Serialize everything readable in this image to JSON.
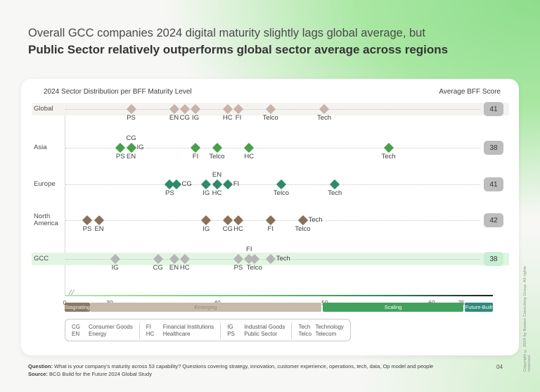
{
  "slide": {
    "title_line1": "Overall GCC companies 2024 digital maturity slightly lags global average, but",
    "title_line2": "Public Sector relatively outperforms global sector average across regions",
    "page_number": "04",
    "copyright": "Copyright © 2024 by Boston Consulting Group. All rights reserved.",
    "footer": {
      "question_label": "Question:",
      "question_text": "What is your company's maturity across 53 capability? Questions covering strategy, innovation, customer experience, operations, tech, data, Op model and people",
      "source_label": "Source:",
      "source_text": "BCG Build for the Future 2024 Global Study"
    }
  },
  "chart_data": {
    "type": "scatter",
    "title": "2024 Sector Distribution per BFF Maturity Level",
    "score_header": "Average BFF Score",
    "xlabel": "BFF Maturity Level score (axis with break after 0 and compression after 60)",
    "x_ticks": [
      0,
      30,
      40,
      50,
      60,
      75
    ],
    "axis_break": true,
    "grid": "dotted row leader lines",
    "maturity_bands": [
      {
        "label": "Stagnating",
        "color": "#8b7a67",
        "text_color": "#f3efe9"
      },
      {
        "label": "Emerging",
        "color": "#c8baaa",
        "text_color": "#938a7d"
      },
      {
        "label": "Scaling",
        "color": "#43a15e",
        "text_color": "#ffffff"
      },
      {
        "label": "Future-Built",
        "color": "#2e8b79",
        "text_color": "#ffffff"
      }
    ],
    "rows": [
      {
        "region": "Global",
        "avg_score": 41,
        "color": "#c9b2a8",
        "badge_bg": "#bdbdbd",
        "badge_fg": "#333333",
        "highlight": "#f4f3f0",
        "points": [
          {
            "sector": "PS",
            "value": 32,
            "label_pos": "below"
          },
          {
            "sector": "EN",
            "value": 36,
            "label_pos": "below"
          },
          {
            "sector": "CG",
            "value": 37,
            "label_pos": "below"
          },
          {
            "sector": "IG",
            "value": 38,
            "label_pos": "below"
          },
          {
            "sector": "HC",
            "value": 41,
            "label_pos": "below"
          },
          {
            "sector": "FI",
            "value": 42,
            "label_pos": "below"
          },
          {
            "sector": "Telco",
            "value": 45,
            "label_pos": "below"
          },
          {
            "sector": "Tech",
            "value": 50,
            "label_pos": "below"
          }
        ]
      },
      {
        "region": "Asia",
        "avg_score": 38,
        "color": "#47a14b",
        "badge_bg": "#bdbdbd",
        "badge_fg": "#333333",
        "highlight": null,
        "points": [
          {
            "sector": "PS",
            "value": 31,
            "label_pos": "below"
          },
          {
            "sector": "EN",
            "value": 32,
            "label_pos": "below"
          },
          {
            "sector": "CG",
            "value": 32,
            "label_pos": "above"
          },
          {
            "sector": "IG",
            "value": 32,
            "label_pos": "right"
          },
          {
            "sector": "FI",
            "value": 38,
            "label_pos": "below"
          },
          {
            "sector": "Telco",
            "value": 40,
            "label_pos": "below"
          },
          {
            "sector": "HC",
            "value": 43,
            "label_pos": "below"
          },
          {
            "sector": "Tech",
            "value": 56,
            "label_pos": "below"
          }
        ]
      },
      {
        "region": "Europe",
        "avg_score": 41,
        "color": "#2f8a6b",
        "badge_bg": "#bdbdbd",
        "badge_fg": "#333333",
        "highlight": null,
        "points": [
          {
            "sector": "PS",
            "value": 35.6,
            "label_pos": "below"
          },
          {
            "sector": "CG",
            "value": 36.2,
            "label_pos": "right"
          },
          {
            "sector": "IG",
            "value": 39,
            "label_pos": "below"
          },
          {
            "sector": "EN",
            "value": 40,
            "label_pos": "above"
          },
          {
            "sector": "HC",
            "value": 40,
            "label_pos": "below"
          },
          {
            "sector": "FI",
            "value": 41,
            "label_pos": "right"
          },
          {
            "sector": "Telco",
            "value": 46,
            "label_pos": "below"
          },
          {
            "sector": "Tech",
            "value": 51,
            "label_pos": "below"
          }
        ]
      },
      {
        "region": "North America",
        "avg_score": 42,
        "color": "#8a7057",
        "badge_bg": "#bdbdbd",
        "badge_fg": "#333333",
        "highlight": null,
        "points": [
          {
            "sector": "PS",
            "value": 15,
            "label_pos": "below"
          },
          {
            "sector": "EN",
            "value": 23,
            "label_pos": "below"
          },
          {
            "sector": "IG",
            "value": 39,
            "label_pos": "below"
          },
          {
            "sector": "CG",
            "value": 41,
            "label_pos": "below"
          },
          {
            "sector": "HC",
            "value": 42,
            "label_pos": "below"
          },
          {
            "sector": "FI",
            "value": 45,
            "label_pos": "below"
          },
          {
            "sector": "Telco",
            "value": 48,
            "label_pos": "below"
          },
          {
            "sector": "Tech",
            "value": 48,
            "label_pos": "right"
          }
        ]
      },
      {
        "region": "GCC",
        "avg_score": 38,
        "color": "#b5b5b5",
        "badge_bg": "#c8efd3",
        "badge_fg": "#333333",
        "highlight": "#e2f5e3",
        "points": [
          {
            "sector": "IG",
            "value": 30.5,
            "label_pos": "below"
          },
          {
            "sector": "CG",
            "value": 34.5,
            "label_pos": "below"
          },
          {
            "sector": "EN",
            "value": 36,
            "label_pos": "below"
          },
          {
            "sector": "HC",
            "value": 37,
            "label_pos": "below"
          },
          {
            "sector": "PS",
            "value": 42,
            "label_pos": "below"
          },
          {
            "sector": "FI",
            "value": 43,
            "label_pos": "above"
          },
          {
            "sector": "Telco",
            "value": 43.5,
            "label_pos": "below"
          },
          {
            "sector": "Tech",
            "value": 45,
            "label_pos": "right"
          }
        ]
      }
    ],
    "legend_columns": [
      [
        {
          "abbr": "CG",
          "name": "Consumer Goods"
        },
        {
          "abbr": "EN",
          "name": "Energy"
        }
      ],
      [
        {
          "abbr": "FI",
          "name": "Financial Institutions"
        },
        {
          "abbr": "HC",
          "name": "Healthcare"
        }
      ],
      [
        {
          "abbr": "IG",
          "name": "Industrial Goods"
        },
        {
          "abbr": "PS",
          "name": "Public Sector"
        }
      ],
      [
        {
          "abbr": "Tech",
          "name": "Technology"
        },
        {
          "abbr": "Telco",
          "name": "Telecom"
        }
      ]
    ]
  }
}
